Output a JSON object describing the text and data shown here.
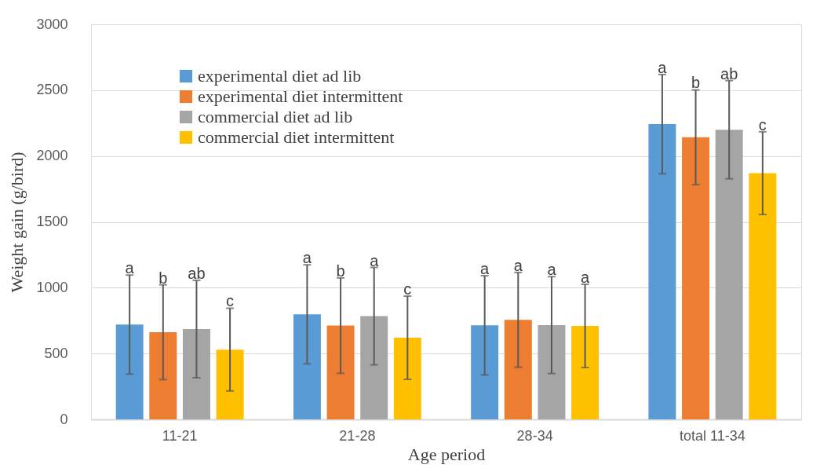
{
  "chart_data": {
    "type": "bar",
    "xlabel": "Age period",
    "ylabel": "Weight gain (g/bird)",
    "categories": [
      "11-21",
      "21-28",
      "28-34",
      "total 11-34"
    ],
    "series": [
      {
        "name": "experimental diet ad lib",
        "color": "#5b9bd5",
        "values": [
          720,
          798,
          714,
          2242
        ],
        "errors": [
          376,
          376,
          377,
          377
        ],
        "value_labels": [
          "a",
          "a",
          "a",
          "a"
        ]
      },
      {
        "name": "experimental diet intermittent",
        "color": "#ed7d31",
        "values": [
          662,
          712,
          756,
          2142
        ],
        "errors": [
          360,
          362,
          360,
          360
        ],
        "value_labels": [
          "b",
          "b",
          "a",
          "b"
        ]
      },
      {
        "name": "commercial diet ad lib",
        "color": "#a5a5a5",
        "values": [
          686,
          784,
          716,
          2200
        ],
        "errors": [
          370,
          370,
          368,
          373
        ],
        "value_labels": [
          "ab",
          "a",
          "a",
          "ab"
        ]
      },
      {
        "name": "commercial diet intermittent",
        "color": "#ffc000",
        "values": [
          530,
          620,
          710,
          1870
        ],
        "errors": [
          314,
          316,
          316,
          314
        ],
        "value_labels": [
          "c",
          "c",
          "a",
          "c"
        ]
      }
    ],
    "ylim": [
      0,
      3000
    ],
    "yticks": [
      0,
      500,
      1000,
      1500,
      2000,
      2500,
      3000
    ],
    "grid": "y",
    "legend": "top left"
  }
}
